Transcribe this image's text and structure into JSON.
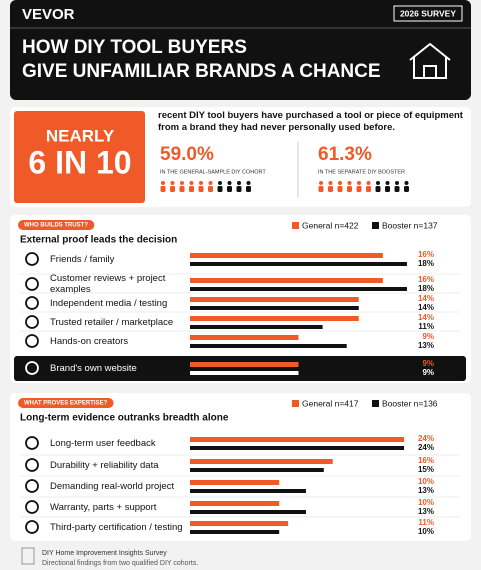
{
  "header": {
    "brand": "VEVOR",
    "badge": "2026 SURVEY",
    "title_lines": [
      "HOW DIY TOOL BUYERS",
      "GIVE UNFAMILIAR BRANDS A CHANCE"
    ]
  },
  "hero": {
    "kicker": "NEARLY",
    "headline": "6 IN 10",
    "statement": "recent DIY tool buyers have purchased a tool or piece of equipment from a brand they had never personally used before.",
    "stats": [
      {
        "value": "59.0%",
        "label": "IN THE GENERAL-SAMPLE DIY COHORT",
        "color": "#f05a28"
      },
      {
        "value": "61.3%",
        "label": "IN THE SEPARATE DIY BOOSTER",
        "color": "#f05a28"
      }
    ]
  },
  "chart_data": [
    {
      "type": "bar",
      "orientation": "horizontal",
      "tag": "WHO BUILDS TRUST?",
      "title": "External proof leads the decision",
      "categories": [
        "Friends / family",
        "Customer reviews + project examples",
        "Independent media / testing",
        "Trusted retailer / marketplace",
        "Hands-on creators",
        "Brand's own website"
      ],
      "series": [
        {
          "name": "General n=422",
          "color": "#f05a28",
          "values": [
            16,
            16,
            14,
            14,
            9,
            9
          ],
          "value_labels": [
            "16%",
            "16%",
            "14%",
            "14%",
            "9%",
            "9%"
          ]
        },
        {
          "name": "Booster n=137",
          "color": "#111111",
          "values": [
            18,
            18,
            14,
            11,
            13,
            9
          ],
          "value_labels": [
            "18%",
            "18%",
            "14%",
            "11%",
            "13%",
            "9%"
          ]
        }
      ],
      "xlim": [
        0,
        18.5
      ],
      "highlight": 5
    },
    {
      "type": "bar",
      "orientation": "horizontal",
      "tag": "WHAT PROVES EXPERTISE?",
      "title": "Long-term evidence outranks breadth alone",
      "categories": [
        "Long-term user feedback",
        "Durability + reliability data",
        "Demanding real-world project",
        "Warranty, parts + support",
        "Third-party certification / testing"
      ],
      "series": [
        {
          "name": "General n=417",
          "color": "#f05a28",
          "values": [
            24,
            16,
            10,
            10,
            11
          ],
          "value_labels": [
            "24%",
            "16%",
            "10%",
            "10%",
            "11%"
          ]
        },
        {
          "name": "Booster n=136",
          "color": "#111111",
          "values": [
            24,
            15,
            13,
            13,
            10
          ],
          "value_labels": [
            "24%",
            "15%",
            "13%",
            "13%",
            "10%"
          ]
        }
      ],
      "xlim": [
        0,
        25
      ]
    }
  ],
  "footer": {
    "source": "DIY Home Improvement Insights Survey",
    "note": "Directional findings from two qualified DIY cohorts."
  }
}
